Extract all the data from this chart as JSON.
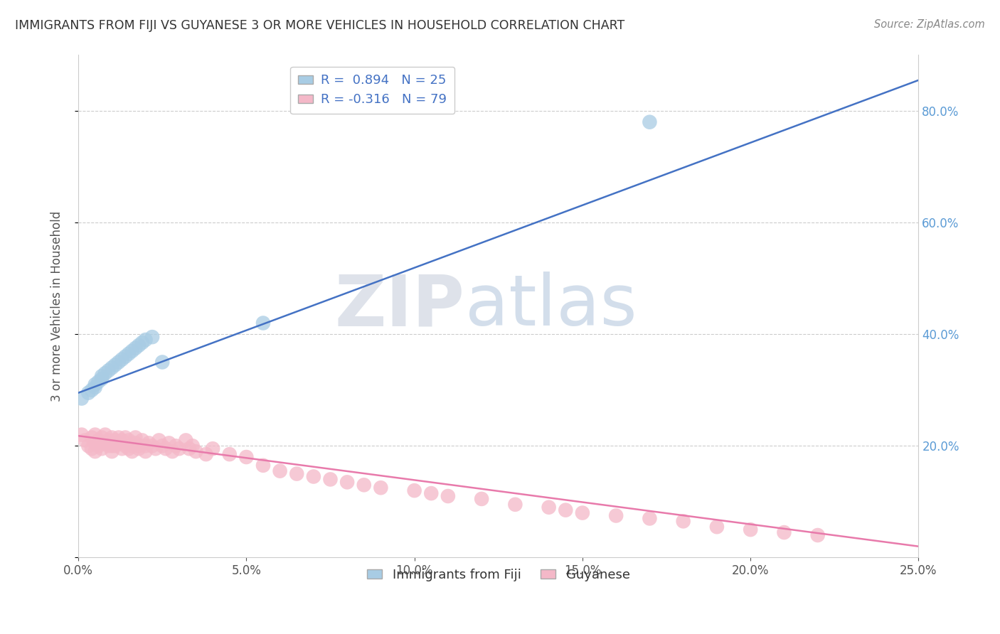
{
  "title": "IMMIGRANTS FROM FIJI VS GUYANESE 3 OR MORE VEHICLES IN HOUSEHOLD CORRELATION CHART",
  "source": "Source: ZipAtlas.com",
  "ylabel": "3 or more Vehicles in Household",
  "xlim": [
    0.0,
    0.25
  ],
  "ylim": [
    0.0,
    0.9
  ],
  "xticks": [
    0.0,
    0.05,
    0.1,
    0.15,
    0.2,
    0.25
  ],
  "xticklabels": [
    "0.0%",
    "",
    "",
    "",
    "",
    "25.0%"
  ],
  "yticks": [
    0.0,
    0.2,
    0.4,
    0.6,
    0.8
  ],
  "right_yticklabels": [
    "",
    "20.0%",
    "40.0%",
    "60.0%",
    "80.0%"
  ],
  "blue_R": 0.894,
  "blue_N": 25,
  "pink_R": -0.316,
  "pink_N": 79,
  "blue_color": "#a8cce4",
  "pink_color": "#f4b8c8",
  "blue_line_color": "#4472c4",
  "pink_line_color": "#e87aab",
  "watermark_ZIP": "ZIP",
  "watermark_atlas": "atlas",
  "legend_label_blue": "Immigrants from Fiji",
  "legend_label_pink": "Guyanese",
  "blue_scatter_x": [
    0.001,
    0.003,
    0.004,
    0.005,
    0.005,
    0.006,
    0.007,
    0.007,
    0.008,
    0.009,
    0.01,
    0.011,
    0.012,
    0.013,
    0.014,
    0.015,
    0.016,
    0.017,
    0.018,
    0.019,
    0.02,
    0.022,
    0.025,
    0.055,
    0.17
  ],
  "blue_scatter_y": [
    0.285,
    0.295,
    0.3,
    0.31,
    0.305,
    0.315,
    0.32,
    0.325,
    0.33,
    0.335,
    0.34,
    0.345,
    0.35,
    0.355,
    0.36,
    0.365,
    0.37,
    0.375,
    0.38,
    0.385,
    0.39,
    0.395,
    0.35,
    0.42,
    0.78
  ],
  "pink_scatter_x": [
    0.001,
    0.002,
    0.003,
    0.004,
    0.004,
    0.005,
    0.005,
    0.005,
    0.006,
    0.006,
    0.007,
    0.007,
    0.008,
    0.008,
    0.009,
    0.009,
    0.01,
    0.01,
    0.01,
    0.011,
    0.011,
    0.012,
    0.012,
    0.013,
    0.013,
    0.014,
    0.014,
    0.015,
    0.015,
    0.016,
    0.016,
    0.017,
    0.017,
    0.018,
    0.018,
    0.019,
    0.02,
    0.02,
    0.021,
    0.022,
    0.023,
    0.024,
    0.025,
    0.026,
    0.027,
    0.028,
    0.029,
    0.03,
    0.032,
    0.033,
    0.034,
    0.035,
    0.038,
    0.04,
    0.045,
    0.05,
    0.055,
    0.06,
    0.065,
    0.07,
    0.075,
    0.08,
    0.085,
    0.09,
    0.1,
    0.105,
    0.11,
    0.12,
    0.13,
    0.14,
    0.145,
    0.15,
    0.16,
    0.17,
    0.18,
    0.19,
    0.2,
    0.21,
    0.22
  ],
  "pink_scatter_y": [
    0.22,
    0.21,
    0.2,
    0.215,
    0.195,
    0.205,
    0.22,
    0.19,
    0.21,
    0.2,
    0.215,
    0.195,
    0.205,
    0.22,
    0.2,
    0.21,
    0.215,
    0.2,
    0.19,
    0.21,
    0.2,
    0.205,
    0.215,
    0.195,
    0.21,
    0.2,
    0.215,
    0.195,
    0.21,
    0.2,
    0.19,
    0.205,
    0.215,
    0.195,
    0.2,
    0.21,
    0.2,
    0.19,
    0.205,
    0.2,
    0.195,
    0.21,
    0.2,
    0.195,
    0.205,
    0.19,
    0.2,
    0.195,
    0.21,
    0.195,
    0.2,
    0.19,
    0.185,
    0.195,
    0.185,
    0.18,
    0.165,
    0.155,
    0.15,
    0.145,
    0.14,
    0.135,
    0.13,
    0.125,
    0.12,
    0.115,
    0.11,
    0.105,
    0.095,
    0.09,
    0.085,
    0.08,
    0.075,
    0.07,
    0.065,
    0.055,
    0.05,
    0.045,
    0.04
  ],
  "blue_line_x": [
    0.0,
    0.25
  ],
  "blue_line_y": [
    0.295,
    0.855
  ],
  "pink_line_x": [
    0.0,
    0.25
  ],
  "pink_line_y": [
    0.218,
    0.02
  ]
}
